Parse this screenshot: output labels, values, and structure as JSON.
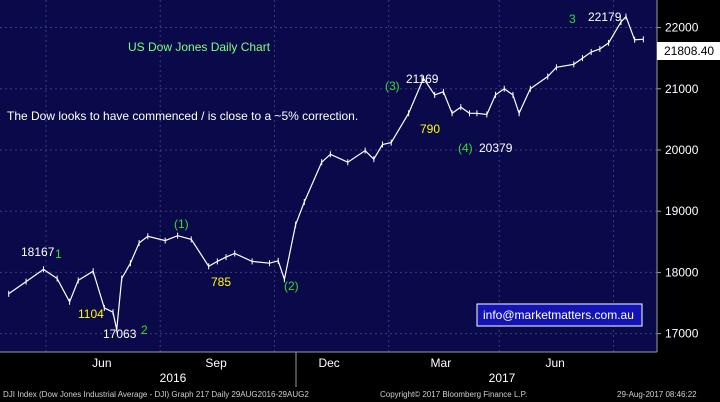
{
  "chart_data": {
    "type": "line",
    "title": "US Dow Jones Daily Chart",
    "colors": {
      "background": "#0a0a4a",
      "grid": "#3a3a80",
      "price": "#ffffff",
      "title": "#7fff7f",
      "annotation_green": "#33dd33",
      "annotation_yellow": "#ffff00",
      "annotation_white": "#ffffff",
      "last_price_box": "#ffffff",
      "info_box": "#1414b4"
    },
    "ylim": [
      16700,
      22450
    ],
    "y_ticks": [
      "17000",
      "18000",
      "19000",
      "20000",
      "21000",
      "22000"
    ],
    "x_ticks": [
      "Jun",
      "Sep",
      "Dec",
      "Mar",
      "Jun"
    ],
    "years": [
      "2016",
      "2017"
    ],
    "series": [
      {
        "x": [
          "2016-04-01",
          "2016-04-15",
          "2016-04-29",
          "2016-05-10",
          "2016-05-20",
          "2016-05-27",
          "2016-06-08",
          "2016-06-17",
          "2016-06-24",
          "2016-06-27",
          "2016-07-01",
          "2016-07-08",
          "2016-07-15",
          "2016-07-22",
          "2016-08-05",
          "2016-08-15",
          "2016-08-26",
          "2016-09-09",
          "2016-09-16",
          "2016-09-23",
          "2016-09-30",
          "2016-10-14",
          "2016-10-28",
          "2016-11-04",
          "2016-11-09",
          "2016-11-18",
          "2016-11-25",
          "2016-12-09",
          "2016-12-16",
          "2016-12-30",
          "2017-01-13",
          "2017-01-20",
          "2017-01-27",
          "2017-02-03",
          "2017-02-17",
          "2017-03-01",
          "2017-03-10",
          "2017-03-17",
          "2017-03-24",
          "2017-03-31",
          "2017-04-07",
          "2017-04-13",
          "2017-04-21",
          "2017-04-28",
          "2017-05-05",
          "2017-05-12",
          "2017-05-17",
          "2017-05-26",
          "2017-06-09",
          "2017-06-16",
          "2017-06-30",
          "2017-07-07",
          "2017-07-14",
          "2017-07-21",
          "2017-07-28",
          "2017-08-07",
          "2017-08-11",
          "2017-08-18",
          "2017-08-25"
        ],
        "values": [
          17650,
          17850,
          18050,
          17900,
          17520,
          17870,
          18020,
          17420,
          17350,
          17063,
          17900,
          18150,
          18480,
          18590,
          18520,
          18600,
          18540,
          18100,
          18180,
          18250,
          18310,
          18180,
          18150,
          18190,
          17888,
          18780,
          19150,
          19800,
          19930,
          19800,
          19990,
          19850,
          20090,
          20120,
          20600,
          21169,
          20900,
          20950,
          20600,
          20700,
          20600,
          20600,
          20580,
          20900,
          21000,
          20900,
          20600,
          21000,
          21200,
          21350,
          21400,
          21500,
          21600,
          21650,
          21750,
          22090,
          22179,
          21800,
          21808
        ]
      }
    ],
    "annotations": {
      "label_18167": "18167",
      "label_1_left": "1",
      "label_1104": "1104",
      "label_17063": "17063",
      "label_2_bottom": "2",
      "label_wave1": "(1)",
      "label_785": "785",
      "label_wave2": "(2)",
      "label_wave3": "(3)",
      "label_21169": "21169",
      "label_790": "790",
      "label_wave4": "(4)",
      "label_20379": "20379",
      "label_3_top": "3",
      "label_22179": "22179",
      "last_price": "21808.40",
      "comment": "The Dow looks to have commenced / is close to a ~5% correction.",
      "info_email": "info@marketmatters.com.au"
    }
  },
  "footer": {
    "left": "DJI Index (Dow Jones Industrial Average - DJI) Graph 217  Daily 29AUG2016-29AUG2",
    "center": "Copyright© 2017 Bloomberg Finance L.P.",
    "right": "29-Aug-2017 08:46:22"
  }
}
